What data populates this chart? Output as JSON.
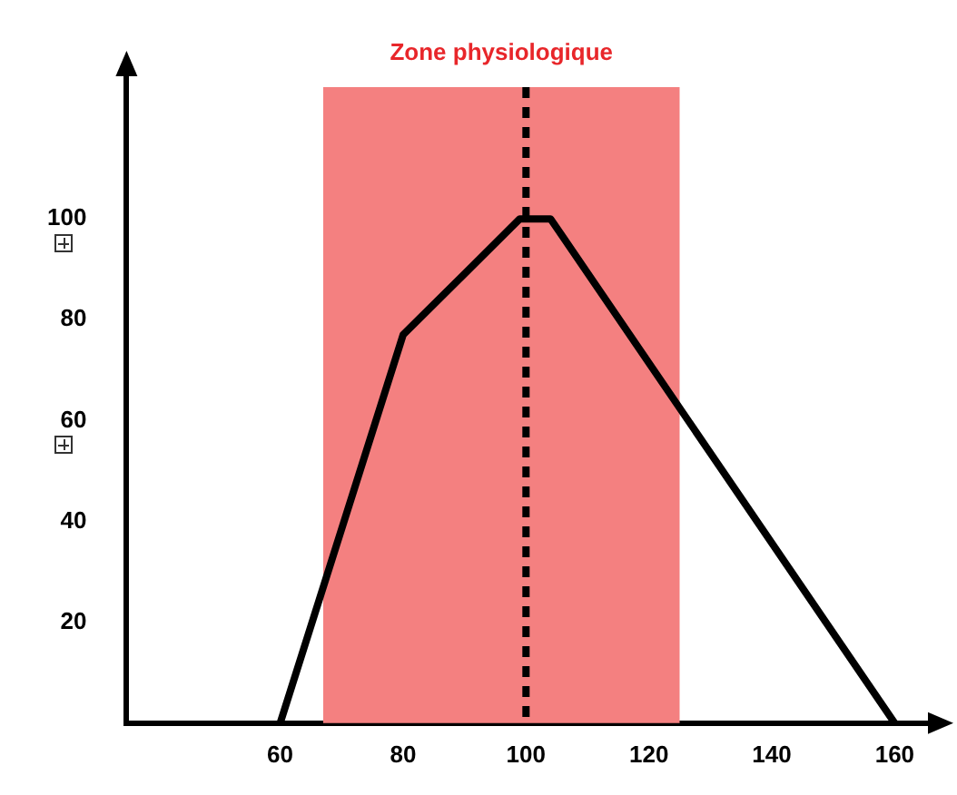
{
  "chart_data": {
    "type": "line",
    "series": [
      {
        "color": "#000000",
        "x": [
          60,
          80,
          99,
          104,
          160
        ],
        "values": [
          0,
          77,
          100,
          100,
          0
        ]
      }
    ],
    "xlim": [
      35,
      166
    ],
    "xticks": [
      60,
      80,
      100,
      120,
      140,
      160
    ],
    "ylim": [
      0,
      129
    ],
    "yticks": [
      20,
      40,
      60,
      80,
      100
    ],
    "bands": [
      {
        "axis": "x",
        "from": 67,
        "to": 125,
        "label": "Zone physiologique",
        "color": "#f48080"
      }
    ],
    "ref_lines": [
      {
        "axis": "x",
        "value": 100,
        "line_style": "dashed",
        "color": "#000000"
      }
    ],
    "grid": false,
    "legend": false,
    "marker": "none",
    "line_style": "solid"
  }
}
